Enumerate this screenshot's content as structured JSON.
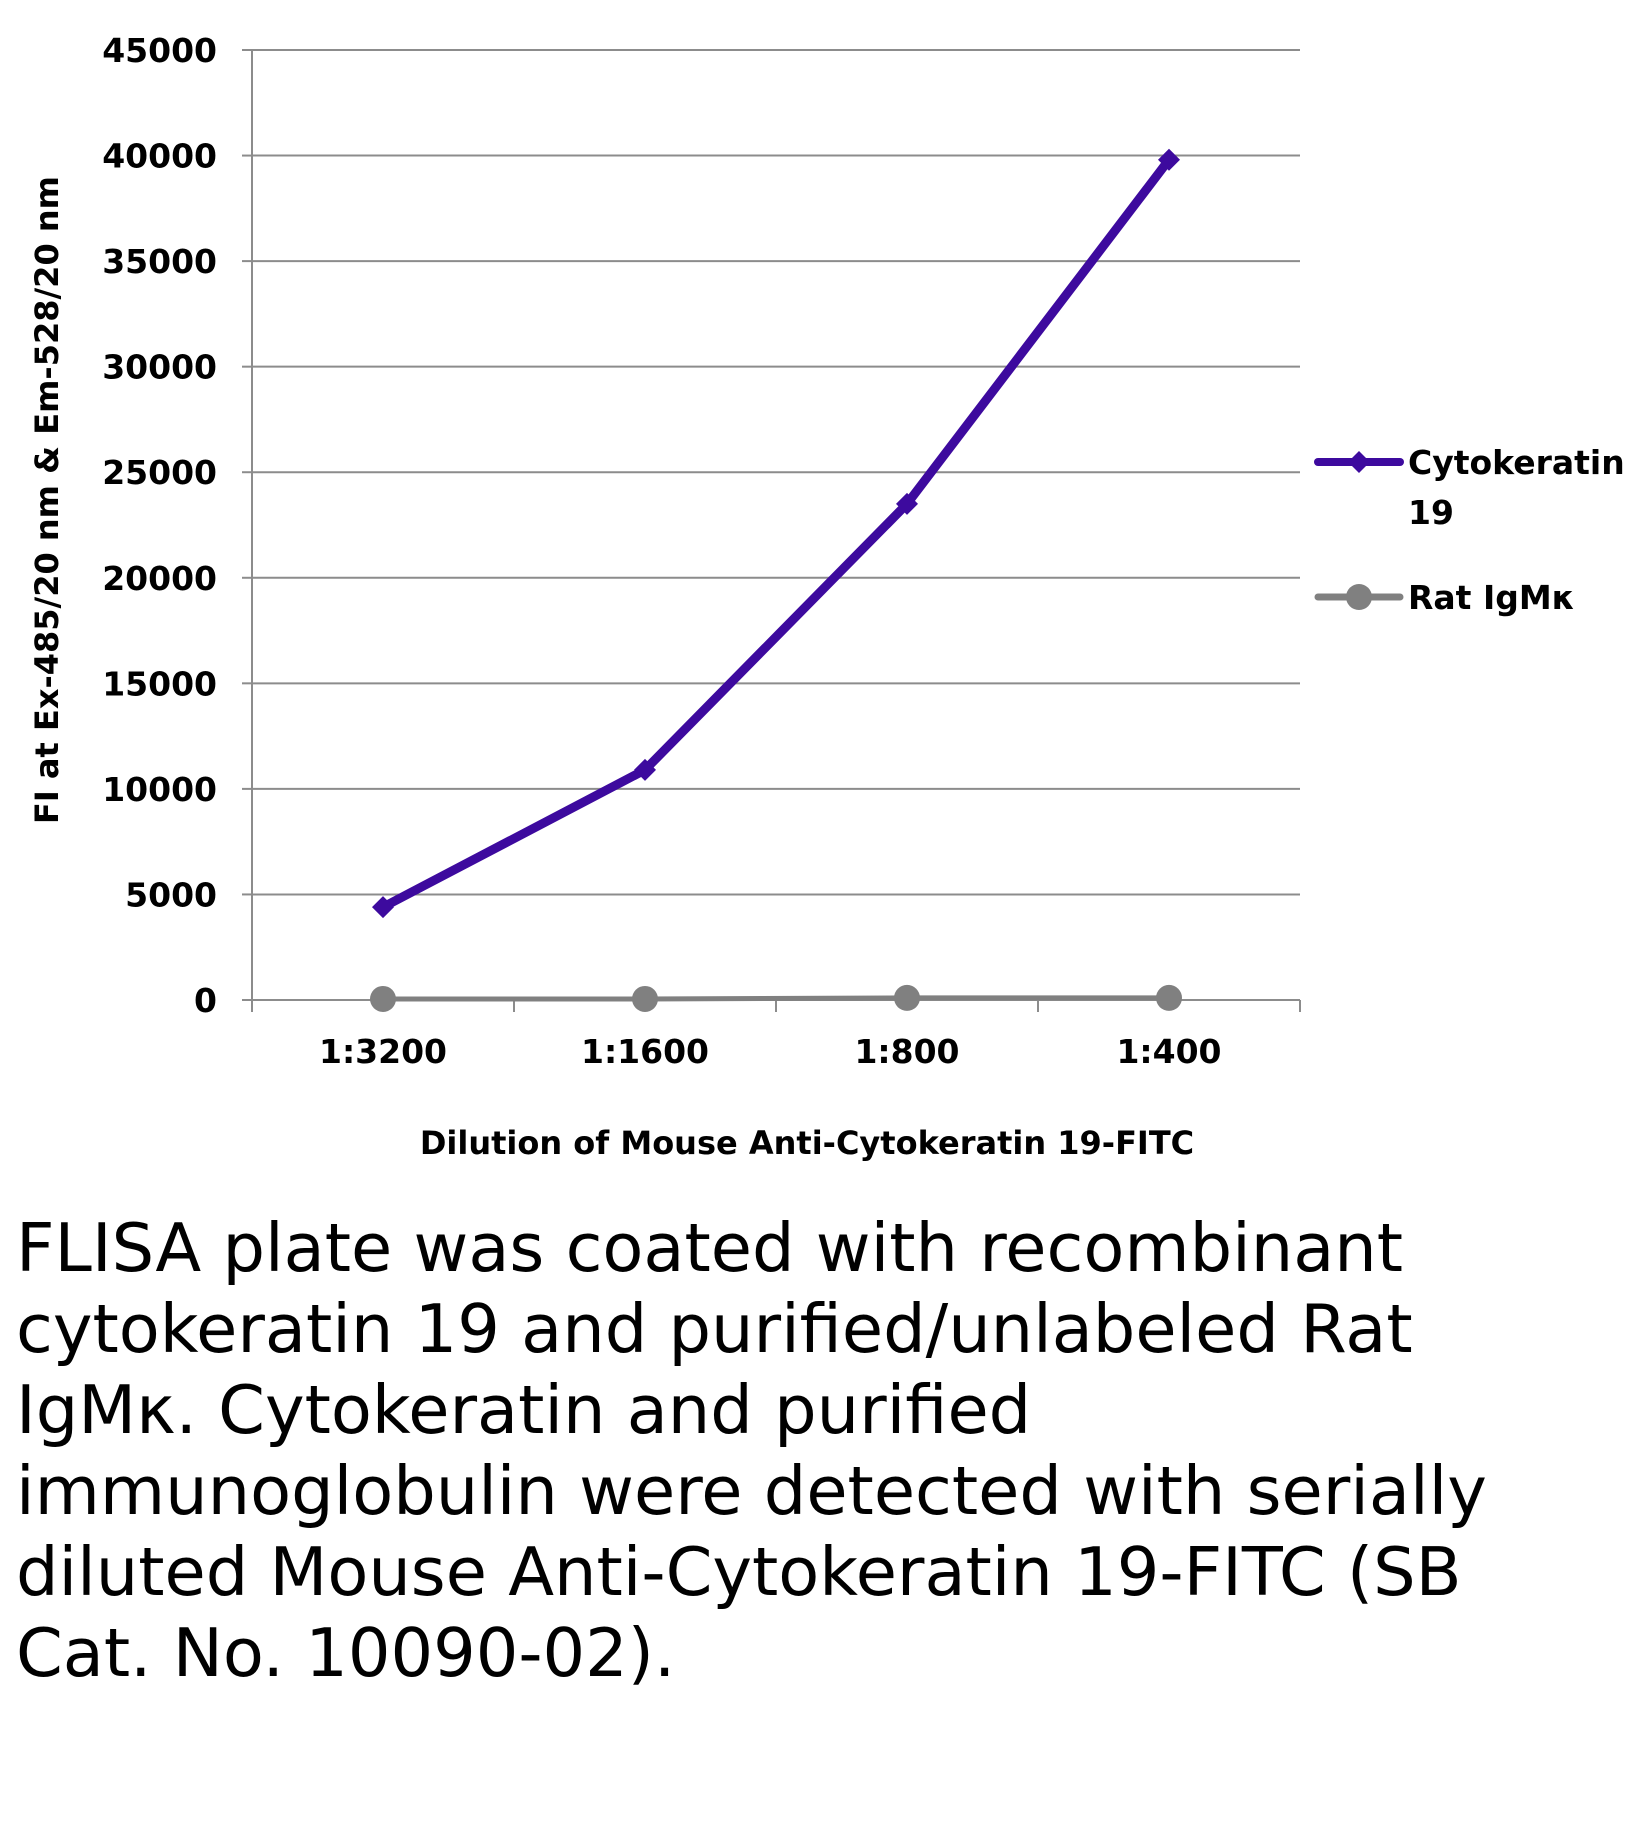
{
  "chart_data": {
    "type": "line",
    "categories": [
      "1:3200",
      "1:1600",
      "1:800",
      "1:400"
    ],
    "series": [
      {
        "name": "Cytokeratin 19",
        "values": [
          4400,
          10900,
          23500,
          39800
        ],
        "color": "#3d0a9e",
        "marker": "diamond"
      },
      {
        "name": "Rat IgMκ",
        "values": [
          50,
          50,
          100,
          100
        ],
        "color": "#808080",
        "marker": "circle"
      }
    ],
    "xlabel": "Dilution of Mouse Anti-Cytokeratin 19-FITC",
    "ylabel": "FI at Ex-485/20 nm & Em-528/20 nm",
    "ylim": [
      0,
      45000
    ],
    "yticks": [
      0,
      5000,
      10000,
      15000,
      20000,
      25000,
      30000,
      35000,
      40000,
      45000
    ],
    "grid": true,
    "legend_position": "right"
  },
  "caption": "FLISA plate was coated with recombinant cytokeratin 19 and purified/unlabeled Rat IgMκ. Cytokeratin and purified immunoglobulin were detected with serially diluted Mouse Anti-Cytokeratin 19-FITC (SB Cat. No. 10090-02)."
}
